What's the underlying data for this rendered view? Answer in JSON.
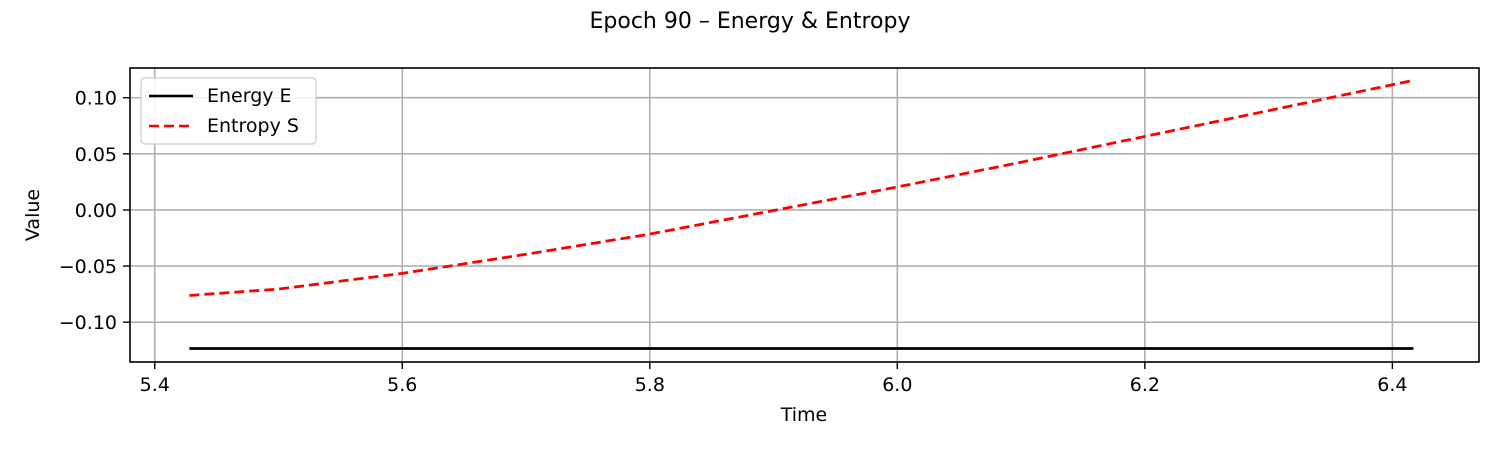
{
  "chart_data": {
    "type": "line",
    "title": "Epoch 90 – Energy & Entropy",
    "xlabel": "Time",
    "ylabel": "Value",
    "xlim": [
      5.38,
      6.47
    ],
    "ylim": [
      -0.1355,
      0.1265
    ],
    "xticks": [
      5.4,
      5.6,
      5.8,
      6.0,
      6.2,
      6.4
    ],
    "xtick_labels": [
      "5.4",
      "5.6",
      "5.8",
      "6.0",
      "6.2",
      "6.4"
    ],
    "yticks": [
      -0.1,
      -0.05,
      0.0,
      0.05,
      0.1
    ],
    "ytick_labels": [
      "−0.10",
      "−0.05",
      "0.00",
      "0.05",
      "0.10"
    ],
    "grid": true,
    "legend_position": "top-left",
    "series": [
      {
        "name": "Energy E",
        "color": "#000000",
        "style": "solid",
        "x": [
          5.428,
          6.417
        ],
        "y": [
          -0.1235,
          -0.1235
        ]
      },
      {
        "name": "Entropy S",
        "color": "#ff0000",
        "style": "dashed",
        "x": [
          5.428,
          5.5,
          5.6,
          5.7,
          5.8,
          5.9,
          6.0,
          6.1,
          6.2,
          6.3,
          6.417
        ],
        "y": [
          -0.0762,
          -0.0705,
          -0.0565,
          -0.0395,
          -0.0215,
          -0.0005,
          0.0205,
          0.0425,
          0.0655,
          0.0885,
          0.1155
        ]
      }
    ]
  }
}
